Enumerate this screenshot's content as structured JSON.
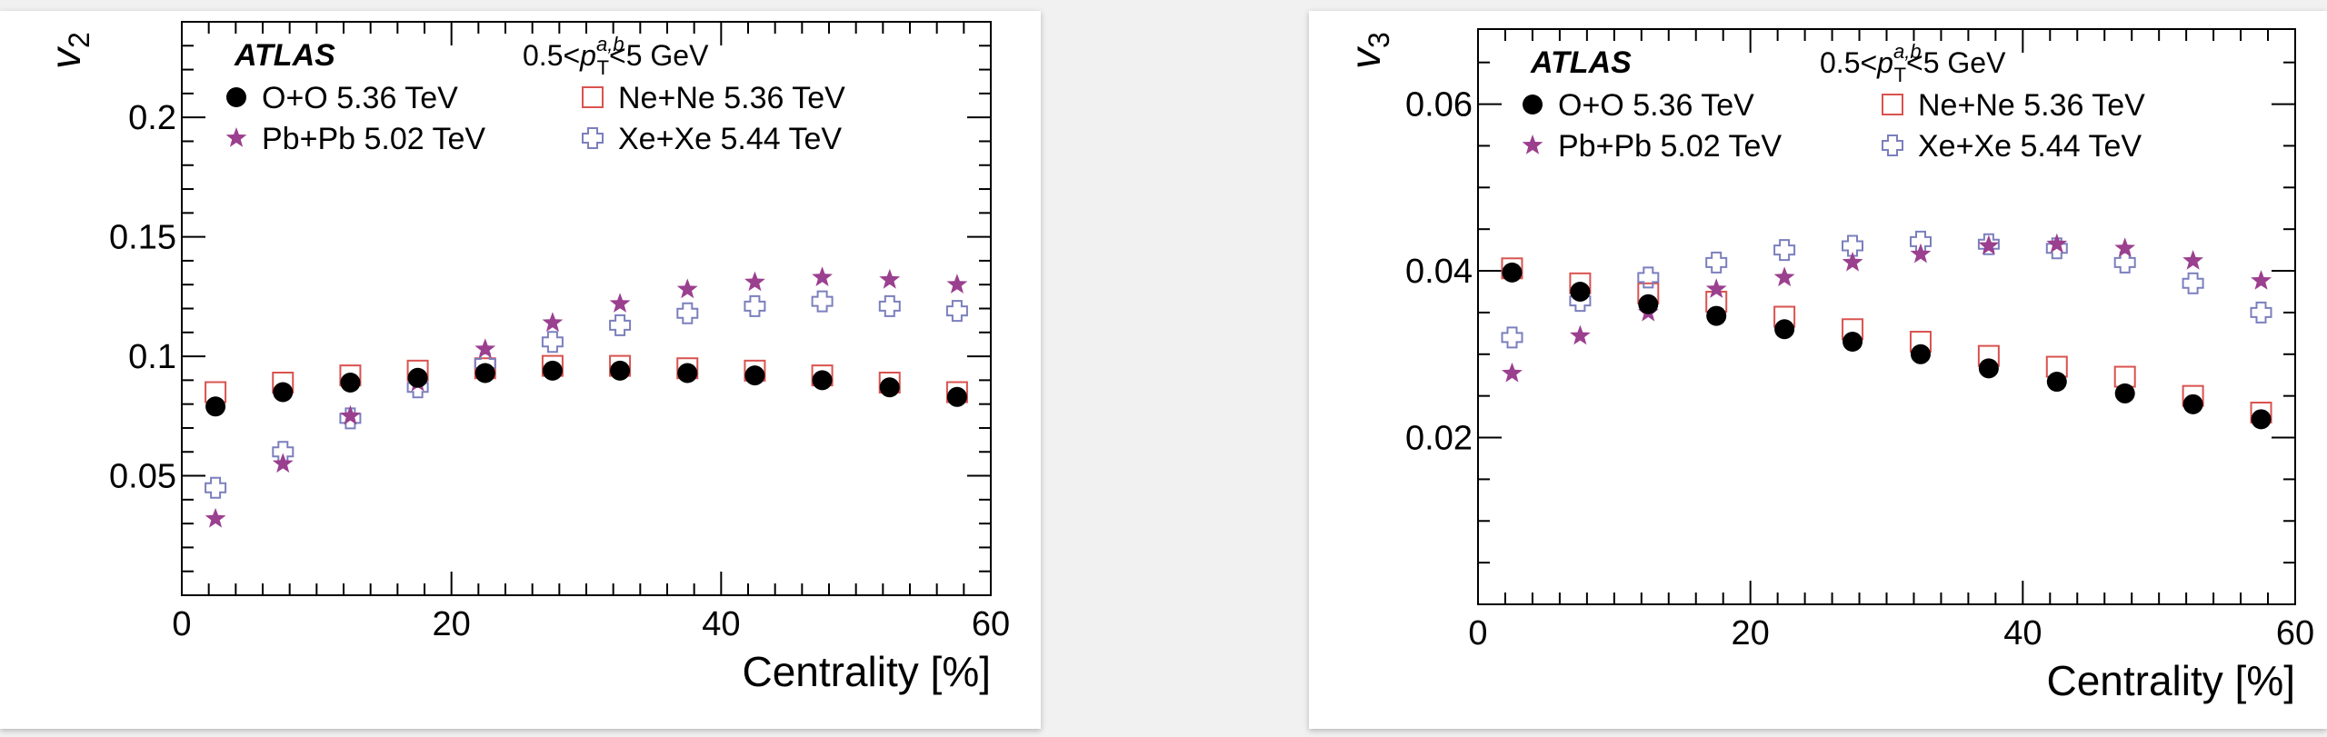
{
  "chart_data": [
    {
      "type": "scatter",
      "ylabel": "v",
      "ylabel_sub": "2",
      "xlabel": "Centrality [%]",
      "label": "ATLAS",
      "kinematics": {
        "prefix": "0.5<",
        "p": "p",
        "sup": "a,b",
        "sub": "T",
        "suffix": "<5 GeV"
      },
      "xlim": [
        0,
        60
      ],
      "ylim": [
        0.0,
        0.24
      ],
      "xticks": [
        0,
        20,
        40,
        60
      ],
      "xtick_labels": [
        "0",
        "20",
        "40",
        "60"
      ],
      "yticks": [
        0.05,
        0.1,
        0.15,
        0.2
      ],
      "ytick_labels": [
        "0.05",
        "0.1",
        "0.15",
        "0.2"
      ],
      "x": [
        2.5,
        7.5,
        12.5,
        17.5,
        22.5,
        27.5,
        32.5,
        37.5,
        42.5,
        47.5,
        52.5,
        57.5
      ],
      "series": [
        {
          "name": "O+O  5.36 TeV",
          "marker": "circle",
          "color": "#000000",
          "values": [
            0.079,
            0.085,
            0.089,
            0.091,
            0.093,
            0.094,
            0.094,
            0.093,
            0.092,
            0.09,
            0.087,
            0.083
          ]
        },
        {
          "name": "Ne+Ne  5.36 TeV",
          "marker": "square",
          "color": "#d9534f",
          "values": [
            0.085,
            0.089,
            0.092,
            0.094,
            0.095,
            0.096,
            0.096,
            0.095,
            0.094,
            0.092,
            0.089,
            0.085
          ]
        },
        {
          "name": "Pb+Pb  5.02 TeV",
          "marker": "star",
          "color": "#9b3f8f",
          "values": [
            0.032,
            0.055,
            0.075,
            0.089,
            0.103,
            0.114,
            0.122,
            0.128,
            0.131,
            0.133,
            0.132,
            0.13
          ]
        },
        {
          "name": "Xe+Xe  5.44 TeV",
          "marker": "cross",
          "color": "#7b7fbd",
          "values": [
            0.045,
            0.06,
            0.074,
            0.087,
            0.097,
            0.106,
            0.113,
            0.118,
            0.121,
            0.123,
            0.121,
            0.119
          ]
        }
      ]
    },
    {
      "type": "scatter",
      "ylabel": "v",
      "ylabel_sub": "3",
      "xlabel": "Centrality [%]",
      "label": "ATLAS",
      "kinematics": {
        "prefix": "0.5<",
        "p": "p",
        "sup": "a,b",
        "sub": "T",
        "suffix": "<5 GeV"
      },
      "xlim": [
        0,
        60
      ],
      "ylim": [
        0.0,
        0.069
      ],
      "xticks": [
        0,
        20,
        40,
        60
      ],
      "xtick_labels": [
        "0",
        "20",
        "40",
        "60"
      ],
      "yticks": [
        0.02,
        0.04,
        0.06
      ],
      "ytick_labels": [
        "0.02",
        "0.04",
        "0.06"
      ],
      "x": [
        2.5,
        7.5,
        12.5,
        17.5,
        22.5,
        27.5,
        32.5,
        37.5,
        42.5,
        47.5,
        52.5,
        57.5
      ],
      "series": [
        {
          "name": "O+O  5.36 TeV",
          "marker": "circle",
          "color": "#000000",
          "values": [
            0.0398,
            0.0375,
            0.036,
            0.0346,
            0.033,
            0.0315,
            0.03,
            0.0283,
            0.0267,
            0.0253,
            0.024,
            0.0222
          ]
        },
        {
          "name": "Ne+Ne  5.36 TeV",
          "marker": "square",
          "color": "#d9534f",
          "values": [
            0.0403,
            0.0385,
            0.0373,
            0.0363,
            0.0345,
            0.033,
            0.0315,
            0.0298,
            0.0285,
            0.0273,
            0.025,
            0.023
          ]
        },
        {
          "name": "Pb+Pb  5.02 TeV",
          "marker": "star",
          "color": "#9b3f8f",
          "values": [
            0.0277,
            0.0322,
            0.035,
            0.0378,
            0.0392,
            0.041,
            0.042,
            0.043,
            0.0432,
            0.0427,
            0.0412,
            0.0388
          ]
        },
        {
          "name": "Xe+Xe  5.44 TeV",
          "marker": "cross",
          "color": "#7b7fbd",
          "values": [
            0.032,
            0.0364,
            0.0392,
            0.041,
            0.0425,
            0.043,
            0.0435,
            0.0432,
            0.0427,
            0.041,
            0.0385,
            0.035
          ]
        }
      ]
    }
  ]
}
